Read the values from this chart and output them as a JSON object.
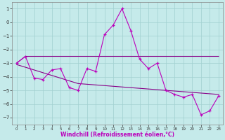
{
  "background_color": "#c5eaea",
  "grid_color": "#a0d0d0",
  "line_color_main": "#bb00bb",
  "line_color_trend": "#880088",
  "x_hours": [
    0,
    1,
    2,
    3,
    4,
    5,
    6,
    7,
    8,
    9,
    10,
    11,
    12,
    13,
    14,
    15,
    16,
    17,
    18,
    19,
    20,
    21,
    22,
    23
  ],
  "y_windchill": [
    -3.0,
    -2.5,
    -4.1,
    -4.2,
    -3.5,
    -3.4,
    -4.8,
    -5.0,
    -3.4,
    -3.6,
    -0.9,
    -0.2,
    1.0,
    -0.6,
    -2.7,
    -3.4,
    -3.0,
    -5.0,
    -5.3,
    -5.5,
    -5.3,
    -6.8,
    -6.5,
    -5.4
  ],
  "trend1_x": [
    0,
    1,
    2,
    3,
    4,
    5,
    6,
    7,
    8,
    9,
    10,
    11,
    12,
    13,
    14,
    15,
    16,
    17,
    18,
    19,
    20,
    21,
    22,
    23
  ],
  "trend1_y": [
    -3.0,
    -2.5,
    -2.5,
    -2.5,
    -2.5,
    -2.5,
    -2.5,
    -2.5,
    -2.5,
    -2.5,
    -2.5,
    -2.5,
    -2.5,
    -2.5,
    -2.5,
    -2.5,
    -2.5,
    -2.5,
    -2.5,
    -2.5,
    -2.5,
    -2.5,
    -2.5,
    -2.5
  ],
  "trend2_x": [
    0,
    1,
    2,
    3,
    4,
    5,
    6,
    7,
    8,
    9,
    10,
    11,
    12,
    13,
    14,
    15,
    16,
    17,
    18,
    19,
    20,
    21,
    22,
    23
  ],
  "trend2_y": [
    -3.1,
    -3.3,
    -3.5,
    -3.7,
    -3.9,
    -4.1,
    -4.3,
    -4.5,
    -4.55,
    -4.6,
    -4.65,
    -4.7,
    -4.75,
    -4.8,
    -4.85,
    -4.9,
    -4.95,
    -5.0,
    -5.05,
    -5.1,
    -5.15,
    -5.2,
    -5.25,
    -5.3
  ],
  "ylim": [
    -7.5,
    1.5
  ],
  "yticks": [
    -7,
    -6,
    -5,
    -4,
    -3,
    -2,
    -1,
    0,
    1
  ],
  "xlim": [
    -0.5,
    23.5
  ],
  "xticks": [
    0,
    1,
    2,
    3,
    4,
    5,
    6,
    7,
    8,
    9,
    10,
    11,
    12,
    13,
    14,
    15,
    16,
    17,
    18,
    19,
    20,
    21,
    22,
    23
  ],
  "xtick_labels": [
    "0",
    "1",
    "2",
    "3",
    "4",
    "5",
    "6",
    "7",
    "8",
    "9",
    "10",
    "11",
    "12",
    "13",
    "14",
    "15",
    "16",
    "17",
    "18",
    "19",
    "20",
    "21",
    "22",
    "23"
  ],
  "xlabel": "Windchill (Refroidissement éolien,°C)"
}
